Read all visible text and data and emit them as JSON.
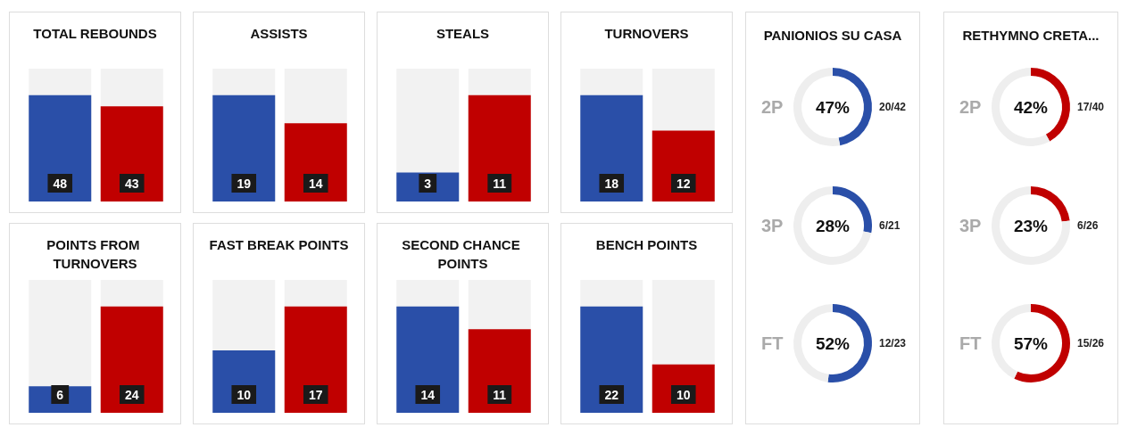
{
  "chart_data": [
    {
      "type": "bar",
      "title": "TOTAL REBOUNDS",
      "categories": [
        null,
        null
      ],
      "values": [
        48,
        43
      ],
      "colors": [
        "#2a4fa8",
        "#c00000"
      ],
      "data_labels": true
    },
    {
      "type": "bar",
      "title": "ASSISTS",
      "categories": [
        null,
        null
      ],
      "values": [
        19,
        14
      ],
      "colors": [
        "#2a4fa8",
        "#c00000"
      ],
      "data_labels": true
    },
    {
      "type": "bar",
      "title": "STEALS",
      "categories": [
        null,
        null
      ],
      "values": [
        3,
        11
      ],
      "colors": [
        "#2a4fa8",
        "#c00000"
      ],
      "data_labels": true
    },
    {
      "type": "bar",
      "title": "TURNOVERS",
      "categories": [
        null,
        null
      ],
      "values": [
        18,
        12
      ],
      "colors": [
        "#2a4fa8",
        "#c00000"
      ],
      "data_labels": true
    },
    {
      "type": "bar",
      "title": "POINTS FROM TURNOVERS",
      "categories": [
        null,
        null
      ],
      "values": [
        6,
        24
      ],
      "colors": [
        "#2a4fa8",
        "#c00000"
      ],
      "data_labels": true
    },
    {
      "type": "bar",
      "title": "FAST BREAK POINTS",
      "categories": [
        null,
        null
      ],
      "values": [
        10,
        17
      ],
      "colors": [
        "#2a4fa8",
        "#c00000"
      ],
      "data_labels": true
    },
    {
      "type": "bar",
      "title": "SECOND CHANCE POINTS",
      "categories": [
        null,
        null
      ],
      "values": [
        14,
        11
      ],
      "colors": [
        "#2a4fa8",
        "#c00000"
      ],
      "data_labels": true
    },
    {
      "type": "bar",
      "title": "BENCH POINTS",
      "categories": [
        null,
        null
      ],
      "values": [
        22,
        10
      ],
      "colors": [
        "#2a4fa8",
        "#c00000"
      ],
      "data_labels": true
    },
    {
      "type": "other",
      "title": "PANIONIOS SU CASA"
    },
    {
      "type": "donut",
      "title": "2P",
      "categories": [
        null,
        null
      ],
      "values": [
        47,
        53
      ],
      "colors": [
        "#2a4fa8",
        "#eeeeee"
      ],
      "annotations": [
        "47%",
        "20/42"
      ]
    },
    {
      "type": "donut",
      "title": "3P",
      "categories": [
        null,
        null
      ],
      "values": [
        28,
        72
      ],
      "colors": [
        "#2a4fa8",
        "#eeeeee"
      ],
      "annotations": [
        "28%",
        "6/21"
      ]
    },
    {
      "type": "donut",
      "title": "FT",
      "categories": [
        null,
        null
      ],
      "values": [
        52,
        48
      ],
      "colors": [
        "#2a4fa8",
        "#eeeeee"
      ],
      "annotations": [
        "52%",
        "12/23"
      ]
    },
    {
      "type": "other",
      "title": "RETHYMNO CRETA..."
    },
    {
      "type": "donut",
      "title": "2P",
      "categories": [
        null,
        null
      ],
      "values": [
        42,
        58
      ],
      "colors": [
        "#c00000",
        "#eeeeee"
      ],
      "annotations": [
        "42%",
        "17/40"
      ]
    },
    {
      "type": "donut",
      "title": "3P",
      "categories": [
        null,
        null
      ],
      "values": [
        23,
        77
      ],
      "colors": [
        "#c00000",
        "#eeeeee"
      ],
      "annotations": [
        "23%",
        "6/26"
      ]
    },
    {
      "type": "donut",
      "title": "FT",
      "categories": [
        null,
        null
      ],
      "values": [
        57,
        43
      ],
      "colors": [
        "#c00000",
        "#eeeeee"
      ],
      "annotations": [
        "57%",
        "15/26"
      ]
    }
  ]
}
